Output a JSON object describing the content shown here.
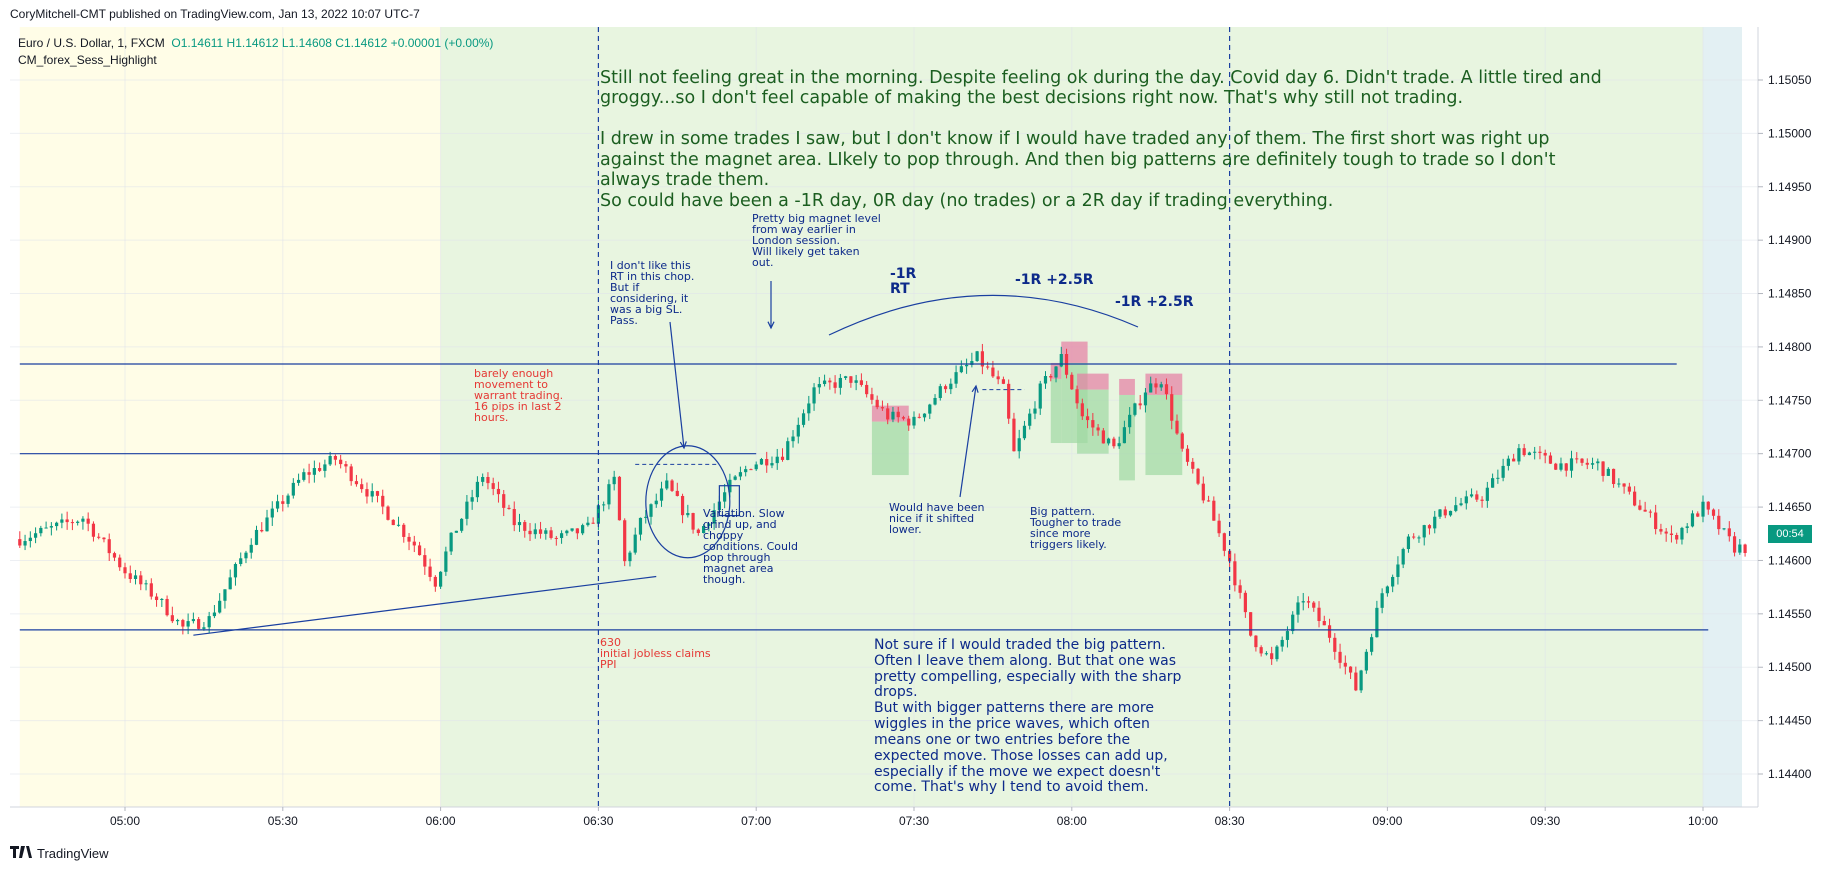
{
  "header": {
    "published": "CoryMitchell-CMT published on TradingView.com, Jan 13, 2022 10:07 UTC-7"
  },
  "legend": {
    "symbol": "Euro / U.S. Dollar, 1, FXCM",
    "ohlc": "O1.14611  H1.14612  L1.14608  C1.14612  +0.00001 (+0.00%)",
    "indicator": "CM_forex_Sess_Highlight"
  },
  "price_tag": {
    "value": "00:54",
    "color": "#089981"
  },
  "annotations": {
    "journal": "Still not feeling great in the morning. Despite feeling ok during the day. Covid day 6. Didn't trade. A little tired and\ngroggy...so I don't feel capable of making the best decisions right now. That's why still not trading.\n\nI drew in some trades I saw, but I don't know if I would have traded any of them. The first short was right up\nagainst the magnet area. LIkely to pop through. And then big patterns are definitely tough to trade so I don't\nalways trade them.\nSo could have been a -1R day, 0R day (no trades) or a 2R day if trading everything.",
    "barely": "barely enough\nmovement to\nwarrant trading.\n16 pips in last 2\nhours.",
    "news": "630\ninitial jobless claims\nPPI",
    "dont_like": "I don't like this\nRT in this chop.\nBut if\nconsidering, it\nwas a big SL.\nPass.",
    "magnet": "Pretty big magnet level\nfrom way earlier in\nLondon session.\nWill likely get taken\nout.",
    "variation": "Variation. Slow\ngrind up, and\nchoppy\nconditions. Could\npop through\nmagnet area\nthough.",
    "r1": "-1R\nRT",
    "r2": "-1R  +2.5R",
    "r3": "-1R   +2.5R",
    "shifted": "Would have been\nnice if it shifted\nlower.",
    "big_pattern": "Big pattern.\nTougher to trade\nsince more\ntriggers likely.",
    "not_sure": "Not sure if I would traded the big pattern.\nOften I leave them along. But that one was\npretty compelling, especially with the sharp\ndrops.\nBut with bigger patterns there are more\nwiggles in the price waves, which often\nmeans one or two entries before the\nexpected move. Those losses can add up,\nespecially if the move we expect doesn't\ncome. That's why I tend to avoid them."
  },
  "footer": {
    "brand": "TradingView"
  },
  "colors": {
    "up": "#089981",
    "down": "#f23645",
    "asia_session": "#fffde7",
    "ny_session": "#e8f5e0",
    "next_session": "#e3f0f3",
    "annotation_blue": "#0d2a8a",
    "annotation_red": "#e53935",
    "annotation_green": "#1b5e20"
  },
  "chart_data": {
    "type": "candlestick",
    "symbol": "EUR/USD",
    "interval": "1",
    "x_tick_labels": [
      "05:00",
      "05:30",
      "06:00",
      "06:30",
      "07:00",
      "07:30",
      "08:00",
      "08:30",
      "09:00",
      "09:30",
      "10:00"
    ],
    "y_tick_labels": [
      "1.15050",
      "1.15000",
      "1.14950",
      "1.14900",
      "1.14850",
      "1.14800",
      "1.14750",
      "1.14700",
      "1.14650",
      "1.14600",
      "1.14550",
      "1.14500",
      "1.14450",
      "1.14400"
    ],
    "ylim": [
      1.14375,
      1.15065
    ],
    "time_range": [
      "04:40",
      "10:08"
    ],
    "sessions": [
      {
        "start": "04:40",
        "end": "06:00",
        "name": "asia"
      },
      {
        "start": "06:00",
        "end": "10:00",
        "name": "ny"
      },
      {
        "start": "10:00",
        "end": "10:08",
        "name": "next"
      }
    ],
    "horizontal_levels": [
      {
        "price": 1.14784,
        "from": "04:40",
        "to": "09:55"
      },
      {
        "price": 1.147,
        "from": "04:40",
        "to": "07:00"
      },
      {
        "price": 1.14535,
        "from": "04:40",
        "to": "10:01"
      }
    ],
    "vertical_lines": [
      "06:30",
      "08:30"
    ],
    "price_path": [
      [
        "04:40",
        1.1462
      ],
      [
        "04:52",
        1.1464
      ],
      [
        "05:00",
        1.1459
      ],
      [
        "05:06",
        1.14565
      ],
      [
        "05:11",
        1.14537
      ],
      [
        "05:16",
        1.14545
      ],
      [
        "05:24",
        1.1462
      ],
      [
        "05:34",
        1.1468
      ],
      [
        "05:40",
        1.14695
      ],
      [
        "05:48",
        1.14655
      ],
      [
        "05:55",
        1.14615
      ],
      [
        "05:59",
        1.1458
      ],
      [
        "06:02",
        1.1462
      ],
      [
        "06:08",
        1.1468
      ],
      [
        "06:14",
        1.14635
      ],
      [
        "06:22",
        1.1462
      ],
      [
        "06:28",
        1.1463
      ],
      [
        "06:33",
        1.14675
      ],
      [
        "06:35",
        1.14598
      ],
      [
        "06:38",
        1.14635
      ],
      [
        "06:43",
        1.1467
      ],
      [
        "06:49",
        1.14625
      ],
      [
        "06:55",
        1.1467
      ],
      [
        "06:59",
        1.1469
      ],
      [
        "07:05",
        1.147
      ],
      [
        "07:11",
        1.1476
      ],
      [
        "07:18",
        1.1477
      ],
      [
        "07:25",
        1.14735
      ],
      [
        "07:30",
        1.1473
      ],
      [
        "07:36",
        1.14765
      ],
      [
        "07:42",
        1.1479
      ],
      [
        "07:47",
        1.1476
      ],
      [
        "07:49",
        1.147
      ],
      [
        "07:54",
        1.1476
      ],
      [
        "07:58",
        1.1479
      ],
      [
        "08:02",
        1.14735
      ],
      [
        "08:08",
        1.14705
      ],
      [
        "08:14",
        1.1476
      ],
      [
        "08:17",
        1.1477
      ],
      [
        "08:21",
        1.147
      ],
      [
        "08:26",
        1.1465
      ],
      [
        "08:30",
        1.146
      ],
      [
        "08:34",
        1.1453
      ],
      [
        "08:38",
        1.14505
      ],
      [
        "08:44",
        1.14565
      ],
      [
        "08:49",
        1.1453
      ],
      [
        "08:54",
        1.1448
      ],
      [
        "08:59",
        1.1457
      ],
      [
        "09:04",
        1.1462
      ],
      [
        "09:12",
        1.1465
      ],
      [
        "09:18",
        1.1466
      ],
      [
        "09:25",
        1.14705
      ],
      [
        "09:32",
        1.1469
      ],
      [
        "09:40",
        1.1469
      ],
      [
        "09:48",
        1.1465
      ],
      [
        "09:54",
        1.1462
      ],
      [
        "10:00",
        1.1465
      ],
      [
        "10:06",
        1.14612
      ]
    ],
    "last_price": 1.14612
  }
}
